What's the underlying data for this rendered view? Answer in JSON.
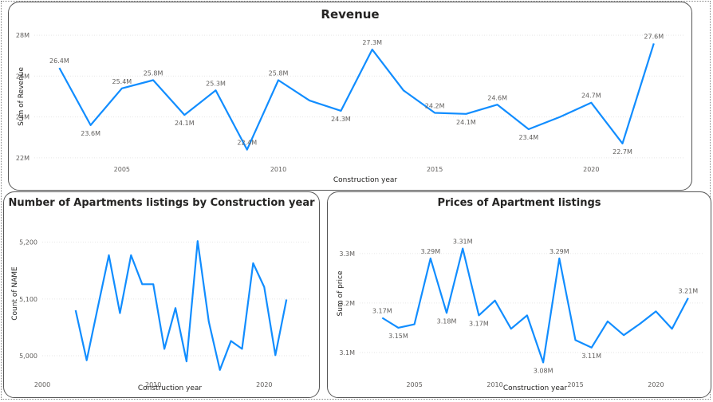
{
  "chart_data": [
    {
      "type": "line",
      "title": "Revenue",
      "xlabel": "Construction year",
      "ylabel": "Sum of Revenue",
      "xlim": [
        2002.2,
        2023
      ],
      "ylim": [
        21.8,
        28.2
      ],
      "xticks": [
        2005,
        2010,
        2015,
        2020
      ],
      "xtick_labels": [
        "2005",
        "2010",
        "2015",
        "2020"
      ],
      "yticks": [
        22,
        24,
        26,
        28
      ],
      "ytick_labels": [
        "22M",
        "24M",
        "26M",
        "28M"
      ],
      "color": "#118DFF",
      "x": [
        2003,
        2004,
        2005,
        2006,
        2007,
        2008,
        2009,
        2010,
        2011,
        2012,
        2013,
        2014,
        2015,
        2016,
        2017,
        2018,
        2019,
        2020,
        2021,
        2022
      ],
      "y": [
        26.4,
        23.6,
        25.4,
        25.8,
        24.1,
        25.3,
        22.4,
        25.8,
        24.8,
        24.3,
        27.3,
        25.3,
        24.2,
        24.15,
        24.6,
        23.4,
        24.0,
        24.7,
        22.7,
        27.6
      ],
      "labels": [
        {
          "x": 2003,
          "text": "26.4M",
          "pos": "above"
        },
        {
          "x": 2004,
          "text": "23.6M",
          "pos": "below"
        },
        {
          "x": 2005,
          "text": "25.4M",
          "pos": "above"
        },
        {
          "x": 2006,
          "text": "25.8M",
          "pos": "above"
        },
        {
          "x": 2007,
          "text": "24.1M",
          "pos": "below"
        },
        {
          "x": 2008,
          "text": "25.3M",
          "pos": "above"
        },
        {
          "x": 2009,
          "text": "22.4M",
          "pos": "above"
        },
        {
          "x": 2010,
          "text": "25.8M",
          "pos": "above"
        },
        {
          "x": 2012,
          "text": "24.3M",
          "pos": "below"
        },
        {
          "x": 2013,
          "text": "27.3M",
          "pos": "above"
        },
        {
          "x": 2015,
          "text": "24.2M",
          "pos": "above"
        },
        {
          "x": 2016,
          "text": "24.1M",
          "pos": "below"
        },
        {
          "x": 2017,
          "text": "24.6M",
          "pos": "above"
        },
        {
          "x": 2018,
          "text": "23.4M",
          "pos": "below"
        },
        {
          "x": 2020,
          "text": "24.7M",
          "pos": "above"
        },
        {
          "x": 2021,
          "text": "22.7M",
          "pos": "below"
        },
        {
          "x": 2022,
          "text": "27.6M",
          "pos": "above"
        }
      ]
    },
    {
      "type": "line",
      "title": "Number of Apartments listings by Construction year",
      "xlabel": "Construction year",
      "ylabel": "Count of NAME",
      "xlim": [
        2000,
        2024
      ],
      "ylim": [
        4962,
        5215
      ],
      "xticks": [
        2000,
        2010,
        2020
      ],
      "xtick_labels": [
        "2000",
        "2010",
        "2020"
      ],
      "yticks": [
        5000,
        5100,
        5200
      ],
      "ytick_labels": [
        "5,000",
        "5,100",
        "5,200"
      ],
      "color": "#118DFF",
      "x": [
        2003,
        2004,
        2005,
        2006,
        2007,
        2008,
        2009,
        2010,
        2011,
        2012,
        2013,
        2014,
        2015,
        2016,
        2017,
        2018,
        2019,
        2020,
        2021,
        2022
      ],
      "y": [
        5080,
        4992,
        5085,
        5177,
        5075,
        5177,
        5126,
        5126,
        5012,
        5084,
        4990,
        5202,
        5060,
        4975,
        5026,
        5012,
        5163,
        5121,
        5001,
        5099
      ]
    },
    {
      "type": "line",
      "title": "Prices of Apartment listings",
      "xlabel": "Construction year",
      "ylabel": "Sum of price",
      "xlim": [
        2001.6,
        2023
      ],
      "ylim": [
        3.05,
        3.34
      ],
      "xticks": [
        2005,
        2010,
        2015,
        2020
      ],
      "xtick_labels": [
        "2005",
        "2010",
        "2015",
        "2020"
      ],
      "yticks": [
        3.1,
        3.2,
        3.3
      ],
      "ytick_labels": [
        "3.1M",
        "3.2M",
        "3.3M"
      ],
      "color": "#118DFF",
      "x": [
        2003,
        2004,
        2005,
        2006,
        2007,
        2008,
        2009,
        2010,
        2011,
        2012,
        2013,
        2014,
        2015,
        2016,
        2017,
        2018,
        2019,
        2020,
        2021,
        2022
      ],
      "y": [
        3.17,
        3.15,
        3.157,
        3.29,
        3.18,
        3.31,
        3.175,
        3.205,
        3.148,
        3.175,
        3.08,
        3.29,
        3.125,
        3.11,
        3.163,
        3.135,
        3.158,
        3.183,
        3.148,
        3.21
      ],
      "labels": [
        {
          "x": 2003,
          "text": "3.17M",
          "pos": "above"
        },
        {
          "x": 2004,
          "text": "3.15M",
          "pos": "below"
        },
        {
          "x": 2006,
          "text": "3.29M",
          "pos": "above"
        },
        {
          "x": 2007,
          "text": "3.18M",
          "pos": "below"
        },
        {
          "x": 2008,
          "text": "3.31M",
          "pos": "above"
        },
        {
          "x": 2009,
          "text": "3.17M",
          "pos": "below"
        },
        {
          "x": 2013,
          "text": "3.08M",
          "pos": "below"
        },
        {
          "x": 2014,
          "text": "3.29M",
          "pos": "above"
        },
        {
          "x": 2016,
          "text": "3.11M",
          "pos": "below"
        },
        {
          "x": 2022,
          "text": "3.21M",
          "pos": "above"
        }
      ]
    }
  ]
}
